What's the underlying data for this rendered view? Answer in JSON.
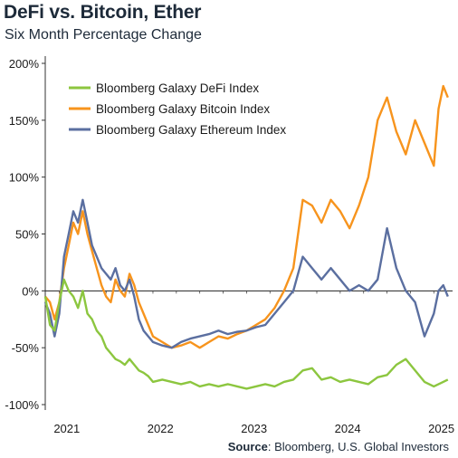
{
  "header": {
    "title": "DeFi vs. Bitcoin, Ether",
    "subtitle": "Six Month Percentage Change"
  },
  "footer": {
    "source_label": "Source",
    "source_text": ": Bloomberg, U.S. Global Investors"
  },
  "chart_data": {
    "type": "line",
    "title": "DeFi vs. Bitcoin, Ether",
    "subtitle": "Six Month Percentage Change",
    "ylim": [
      -100,
      200
    ],
    "xlim": [
      2020.85,
      2025.2
    ],
    "yticks": [
      -100,
      -50,
      0,
      50,
      100,
      150,
      200
    ],
    "ytick_labels": [
      "-100%",
      "-50%",
      "0%",
      "50%",
      "100%",
      "150%",
      "200%"
    ],
    "xticks": [
      2021,
      2022,
      2023,
      2024,
      2025
    ],
    "xtick_labels": [
      "2021",
      "2022",
      "2023",
      "2024",
      "2025"
    ],
    "grid": false,
    "zero_line": true,
    "legend_position": "top-left",
    "series": [
      {
        "name": "Bloomberg Galaxy DeFi Index",
        "color": "#8cc63f",
        "x": [
          2020.85,
          2020.9,
          2020.95,
          2021.0,
          2021.05,
          2021.1,
          2021.15,
          2021.2,
          2021.25,
          2021.3,
          2021.35,
          2021.4,
          2021.45,
          2021.5,
          2021.55,
          2021.6,
          2021.65,
          2021.7,
          2021.75,
          2021.8,
          2021.85,
          2021.9,
          2021.95,
          2022.0,
          2022.1,
          2022.2,
          2022.3,
          2022.4,
          2022.5,
          2022.6,
          2022.7,
          2022.8,
          2022.9,
          2023.0,
          2023.1,
          2023.2,
          2023.3,
          2023.4,
          2023.5,
          2023.6,
          2023.7,
          2023.8,
          2023.9,
          2024.0,
          2024.1,
          2024.2,
          2024.3,
          2024.4,
          2024.5,
          2024.6,
          2024.7,
          2024.8,
          2024.9,
          2025.0,
          2025.05,
          2025.1,
          2025.15
        ],
        "values": [
          -5,
          -30,
          -35,
          -10,
          10,
          0,
          -5,
          -15,
          0,
          -20,
          -25,
          -35,
          -40,
          -50,
          -55,
          -60,
          -62,
          -65,
          -60,
          -65,
          -70,
          -72,
          -75,
          -80,
          -78,
          -80,
          -82,
          -80,
          -84,
          -82,
          -84,
          -82,
          -84,
          -86,
          -84,
          -82,
          -84,
          -80,
          -78,
          -70,
          -68,
          -78,
          -76,
          -80,
          -78,
          -80,
          -82,
          -76,
          -74,
          -65,
          -60,
          -70,
          -80,
          -84,
          -82,
          -80,
          -78
        ]
      },
      {
        "name": "Bloomberg Galaxy Bitcoin Index",
        "color": "#f7941d",
        "x": [
          2020.85,
          2020.9,
          2020.95,
          2021.0,
          2021.05,
          2021.1,
          2021.15,
          2021.2,
          2021.25,
          2021.3,
          2021.35,
          2021.4,
          2021.45,
          2021.5,
          2021.55,
          2021.6,
          2021.65,
          2021.7,
          2021.75,
          2021.8,
          2021.85,
          2021.9,
          2021.95,
          2022.0,
          2022.1,
          2022.2,
          2022.3,
          2022.4,
          2022.5,
          2022.6,
          2022.7,
          2022.8,
          2022.9,
          2023.0,
          2023.1,
          2023.2,
          2023.3,
          2023.4,
          2023.5,
          2023.6,
          2023.7,
          2023.8,
          2023.9,
          2024.0,
          2024.1,
          2024.2,
          2024.3,
          2024.4,
          2024.5,
          2024.6,
          2024.7,
          2024.8,
          2024.9,
          2025.0,
          2025.05,
          2025.1,
          2025.15
        ],
        "values": [
          -5,
          -10,
          -25,
          -10,
          20,
          40,
          60,
          50,
          70,
          50,
          35,
          20,
          5,
          -5,
          -10,
          10,
          0,
          -5,
          15,
          5,
          -10,
          -20,
          -30,
          -40,
          -45,
          -50,
          -48,
          -45,
          -50,
          -45,
          -40,
          -42,
          -38,
          -35,
          -30,
          -25,
          -15,
          0,
          20,
          80,
          75,
          60,
          80,
          70,
          55,
          75,
          100,
          150,
          170,
          140,
          120,
          150,
          130,
          110,
          160,
          180,
          170
        ]
      },
      {
        "name": "Bloomberg Galaxy Ethereum Index",
        "color": "#5b6fa0",
        "x": [
          2020.85,
          2020.9,
          2020.95,
          2021.0,
          2021.05,
          2021.1,
          2021.15,
          2021.2,
          2021.25,
          2021.3,
          2021.35,
          2021.4,
          2021.45,
          2021.5,
          2021.55,
          2021.6,
          2021.65,
          2021.7,
          2021.75,
          2021.8,
          2021.85,
          2021.9,
          2021.95,
          2022.0,
          2022.1,
          2022.2,
          2022.3,
          2022.4,
          2022.5,
          2022.6,
          2022.7,
          2022.8,
          2022.9,
          2023.0,
          2023.1,
          2023.2,
          2023.3,
          2023.4,
          2023.5,
          2023.6,
          2023.7,
          2023.8,
          2023.9,
          2024.0,
          2024.1,
          2024.2,
          2024.3,
          2024.4,
          2024.5,
          2024.6,
          2024.7,
          2024.8,
          2024.9,
          2025.0,
          2025.05,
          2025.1,
          2025.15
        ],
        "values": [
          -10,
          -20,
          -40,
          -20,
          30,
          50,
          70,
          60,
          80,
          60,
          40,
          30,
          20,
          15,
          10,
          20,
          5,
          0,
          10,
          -5,
          -25,
          -35,
          -40,
          -45,
          -48,
          -50,
          -45,
          -42,
          -40,
          -38,
          -35,
          -38,
          -36,
          -35,
          -32,
          -30,
          -20,
          -10,
          0,
          30,
          20,
          10,
          20,
          10,
          0,
          5,
          0,
          10,
          55,
          20,
          0,
          -10,
          -40,
          -20,
          0,
          5,
          -5
        ]
      }
    ]
  }
}
